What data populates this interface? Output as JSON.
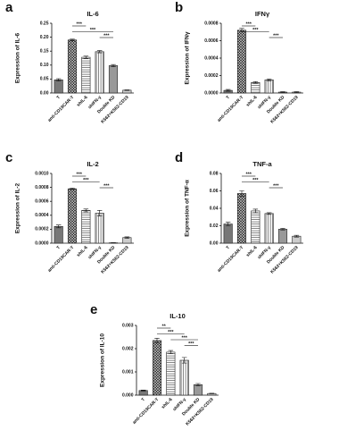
{
  "chart_data": [
    {
      "type": "bar",
      "panel": "a",
      "title": "IL-6",
      "ylabel": "Expression of IL-6",
      "categories": [
        "T",
        "anti-CD19CAR-T",
        "shIL-6",
        "shIFN-γ",
        "Double KD",
        "K562+K562-CD19"
      ],
      "values": [
        0.047,
        0.19,
        0.128,
        0.148,
        0.098,
        0.01
      ],
      "errors": [
        0.004,
        0.003,
        0.004,
        0.004,
        0.004,
        0.001
      ],
      "ylim": [
        0,
        0.25
      ],
      "yticks": [
        {
          "value": 0,
          "label": "0.00"
        },
        {
          "value": 0.05,
          "label": "0.05"
        },
        {
          "value": 0.1,
          "label": "0.10"
        },
        {
          "value": 0.15,
          "label": "0.15"
        },
        {
          "value": 0.2,
          "label": "0.20"
        },
        {
          "value": 0.25,
          "label": "0.25"
        }
      ],
      "significance": [
        {
          "from": "anti-CD19CAR-T",
          "to": "shIL-6",
          "label": "***"
        },
        {
          "from": "anti-CD19CAR-T",
          "to": "Double KD",
          "label": "***"
        },
        {
          "from": "shIFN-γ",
          "to": "Double KD",
          "label": "***"
        }
      ]
    },
    {
      "type": "bar",
      "panel": "b",
      "title": "IFNγ",
      "ylabel": "Expression of IFNγ",
      "categories": [
        "T",
        "anti-CD19CAR-T",
        "shIL-6",
        "shIFN-γ",
        "Double KD",
        "K562+K562-CD19"
      ],
      "values": [
        3e-05,
        0.00072,
        0.00012,
        0.00015,
        1e-05,
        1e-05
      ],
      "errors": [
        1e-05,
        2e-05,
        1e-05,
        1e-05,
        5e-06,
        5e-06
      ],
      "ylim": [
        0,
        0.0008
      ],
      "yticks": [
        {
          "value": 0,
          "label": "0.0000"
        },
        {
          "value": 0.0002,
          "label": "0.0002"
        },
        {
          "value": 0.0004,
          "label": "0.0004"
        },
        {
          "value": 0.0006,
          "label": "0.0006"
        },
        {
          "value": 0.0008,
          "label": "0.0008"
        }
      ],
      "significance": [
        {
          "from": "anti-CD19CAR-T",
          "to": "shIL-6",
          "label": "***"
        },
        {
          "from": "anti-CD19CAR-T",
          "to": "shIFN-γ",
          "label": "***"
        },
        {
          "from": "shIFN-γ",
          "to": "Double KD",
          "label": "***"
        }
      ]
    },
    {
      "type": "bar",
      "panel": "c",
      "title": "IL-2",
      "ylabel": "Expression of IL-2",
      "categories": [
        "T",
        "anti-CD19CAR-T",
        "shIL-6",
        "shIFN-γ",
        "Double KD",
        "K562+K562-CD19"
      ],
      "values": [
        0.00024,
        0.00078,
        0.00047,
        0.00043,
        5e-06,
        8e-05
      ],
      "errors": [
        2e-05,
        1e-05,
        2e-05,
        4e-05,
        2e-06,
        1e-05
      ],
      "ylim": [
        0,
        0.001
      ],
      "yticks": [
        {
          "value": 0,
          "label": "0.0000"
        },
        {
          "value": 0.0002,
          "label": "0.0002"
        },
        {
          "value": 0.0004,
          "label": "0.0004"
        },
        {
          "value": 0.0006,
          "label": "0.0006"
        },
        {
          "value": 0.0008,
          "label": "0.0008"
        },
        {
          "value": 0.001,
          "label": "0.0010"
        }
      ],
      "significance": [
        {
          "from": "anti-CD19CAR-T",
          "to": "shIL-6",
          "label": "***"
        },
        {
          "from": "anti-CD19CAR-T",
          "to": "shIFN-γ",
          "label": "***"
        },
        {
          "from": "shIFN-γ",
          "to": "Double KD",
          "label": "***"
        }
      ]
    },
    {
      "type": "bar",
      "panel": "d",
      "title": "TNF-a",
      "ylabel": "Expression of TNF-α",
      "categories": [
        "T",
        "anti-CD19CAR-T",
        "shIL-6",
        "shIFN-γ",
        "Double KD",
        "K562+K562-CD19"
      ],
      "values": [
        0.022,
        0.057,
        0.037,
        0.034,
        0.016,
        0.008
      ],
      "errors": [
        0.002,
        0.003,
        0.002,
        0.001,
        0.001,
        0.001
      ],
      "ylim": [
        0,
        0.08
      ],
      "yticks": [
        {
          "value": 0,
          "label": "0.00"
        },
        {
          "value": 0.02,
          "label": "0.02"
        },
        {
          "value": 0.04,
          "label": "0.04"
        },
        {
          "value": 0.06,
          "label": "0.06"
        },
        {
          "value": 0.08,
          "label": "0.08"
        }
      ],
      "significance": [
        {
          "from": "anti-CD19CAR-T",
          "to": "shIL-6",
          "label": "***"
        },
        {
          "from": "anti-CD19CAR-T",
          "to": "shIFN-γ",
          "label": "***"
        },
        {
          "from": "shIFN-γ",
          "to": "Double KD",
          "label": "***"
        }
      ]
    },
    {
      "type": "bar",
      "panel": "e",
      "title": "IL-10",
      "ylabel": "Expression of IL-10",
      "categories": [
        "T",
        "anti-CD19CAR-T",
        "shIL-6",
        "shIFN-γ",
        "Double KD",
        "K562+K562-CD19"
      ],
      "values": [
        0.0002,
        0.00235,
        0.00185,
        0.0015,
        0.00045,
        7e-05
      ],
      "errors": [
        2e-05,
        0.0001,
        7e-05,
        0.00012,
        5e-05,
        1e-05
      ],
      "ylim": [
        0,
        0.003
      ],
      "yticks": [
        {
          "value": 0,
          "label": "0.000"
        },
        {
          "value": 0.001,
          "label": "0.001"
        },
        {
          "value": 0.002,
          "label": "0.002"
        },
        {
          "value": 0.003,
          "label": "0.003"
        }
      ],
      "significance": [
        {
          "from": "anti-CD19CAR-T",
          "to": "shIL-6",
          "label": "**"
        },
        {
          "from": "anti-CD19CAR-T",
          "to": "shIFN-γ",
          "label": "***"
        },
        {
          "from": "shIL-6",
          "to": "Double KD",
          "label": "***"
        },
        {
          "from": "shIFN-γ",
          "to": "Double KD",
          "label": "***"
        }
      ]
    }
  ]
}
